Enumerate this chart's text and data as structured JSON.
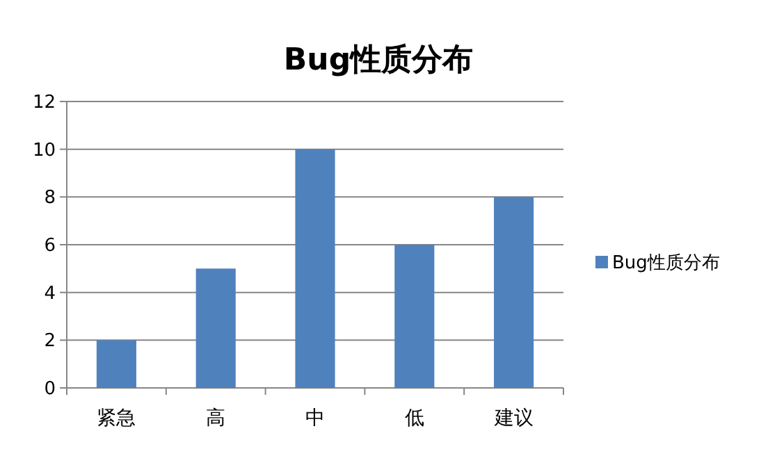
{
  "chart_data": {
    "type": "bar",
    "title": "Bug性质分布",
    "categories": [
      "紧急",
      "高",
      "中",
      "低",
      "建议"
    ],
    "series": [
      {
        "name": "Bug性质分布",
        "color": "#4f81bd",
        "values": [
          2,
          5,
          10,
          6,
          8
        ]
      }
    ],
    "ylim": [
      0,
      12
    ],
    "yticks": [
      0,
      2,
      4,
      6,
      8,
      10,
      12
    ],
    "grid": "y",
    "legend": "right"
  }
}
